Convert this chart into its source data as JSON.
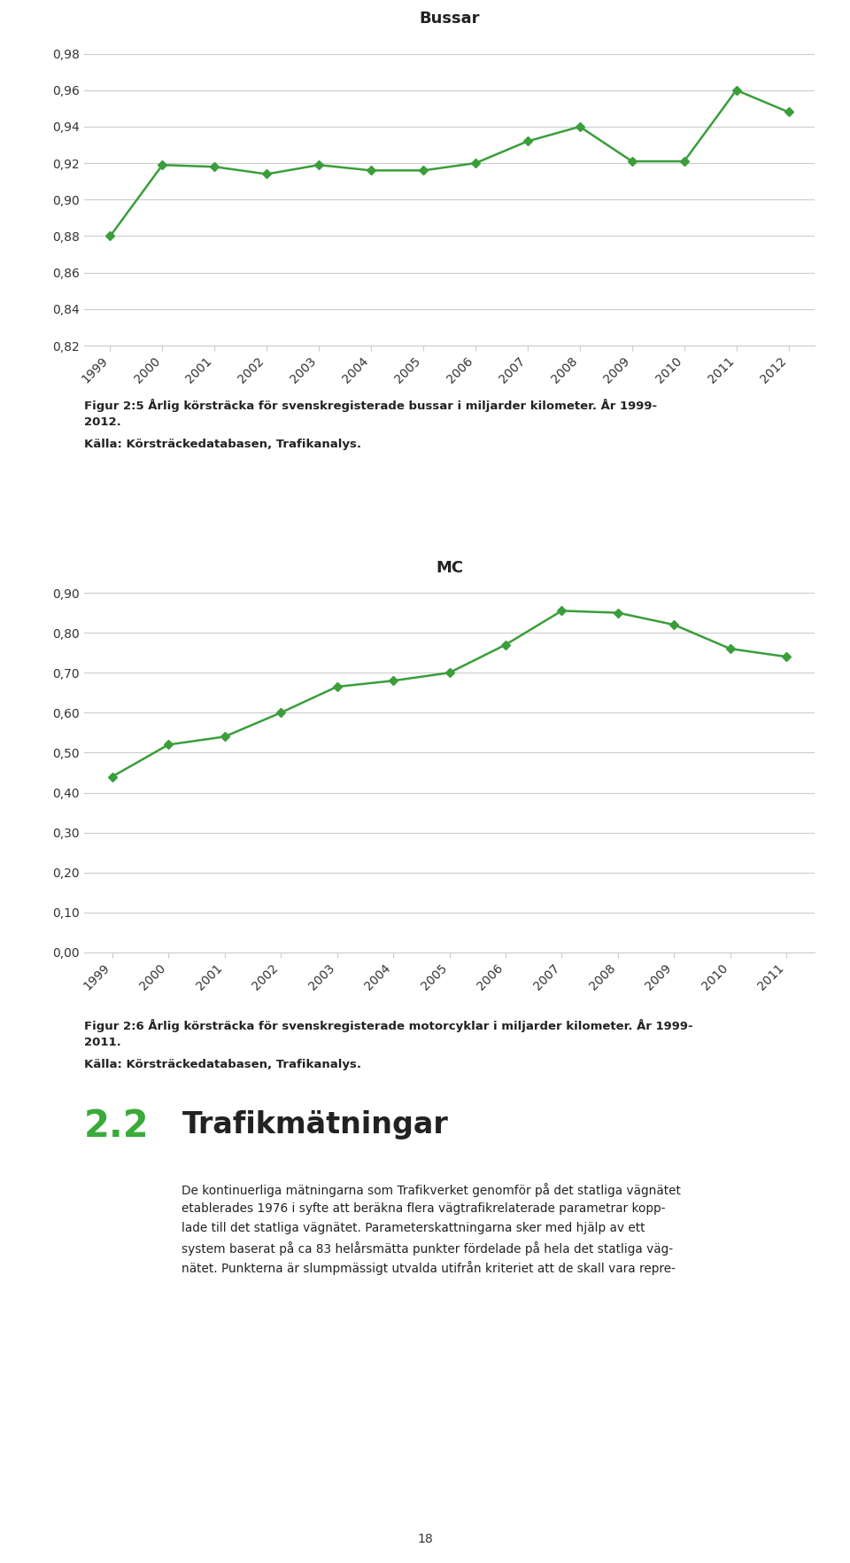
{
  "chart1": {
    "title": "Bussar",
    "years": [
      1999,
      2000,
      2001,
      2002,
      2003,
      2004,
      2005,
      2006,
      2007,
      2008,
      2009,
      2010,
      2011,
      2012
    ],
    "values": [
      0.88,
      0.919,
      0.918,
      0.914,
      0.919,
      0.916,
      0.916,
      0.92,
      0.932,
      0.94,
      0.921,
      0.921,
      0.96,
      0.948
    ],
    "ylim": [
      0.82,
      0.99
    ],
    "yticks": [
      0.82,
      0.84,
      0.86,
      0.88,
      0.9,
      0.92,
      0.94,
      0.96,
      0.98
    ],
    "line_color": "#3a9e3a",
    "marker": "D",
    "marker_size": 5
  },
  "chart2": {
    "title": "MC",
    "years": [
      1999,
      2000,
      2001,
      2002,
      2003,
      2004,
      2005,
      2006,
      2007,
      2008,
      2009,
      2010,
      2011
    ],
    "values": [
      0.44,
      0.52,
      0.54,
      0.6,
      0.665,
      0.68,
      0.7,
      0.77,
      0.855,
      0.85,
      0.82,
      0.76,
      0.74
    ],
    "ylim": [
      0.0,
      0.92
    ],
    "yticks": [
      0.0,
      0.1,
      0.2,
      0.3,
      0.4,
      0.5,
      0.6,
      0.7,
      0.8,
      0.9
    ],
    "line_color": "#3a9e3a",
    "marker": "D",
    "marker_size": 5
  },
  "caption1_line1": "Figur 2:5 Årlig körsträcka för svenskregisterade bussar i miljarder kilometer. År 1999-",
  "caption1_line2": "2012.",
  "caption1_source": "Källa: Körsträckedatabasen, Trafikanalys.",
  "caption2_line1": "Figur 2:6 Årlig körsträcka för svenskregisterade motorcyklar i miljarder kilometer. År 1999-",
  "caption2_line2": "2011.",
  "caption2_source": "Källa: Körsträckedatabasen, Trafikanalys.",
  "section_number": "2.2",
  "section_title": "Trafikmätningar",
  "body_line1": "De kontinuerliga mätningarna som Trafikverket genomför på det statliga vägnätet",
  "body_line2": "etablerades 1976 i syfte att beräkna flera vägtrafikrelaterade parametrar kopp-",
  "body_line3": "lade till det statliga vägnätet. Parameterskattningarna sker med hjälp av ett",
  "body_line4": "system baserat på ca 83 helårsmätta punkter fördelade på hela det statliga väg-",
  "body_line5": "nätet. Punkterna är slumpmässigt utvalda utifrån kriteriet att de skall vara repre-",
  "page_number": "18",
  "background_color": "#ffffff",
  "grid_color": "#cccccc",
  "tick_label_color": "#333333",
  "title_fontsize": 13,
  "tick_fontsize": 10,
  "section_number_color": "#3aaa3a",
  "section_number_fontsize": 30,
  "section_title_fontsize": 24
}
